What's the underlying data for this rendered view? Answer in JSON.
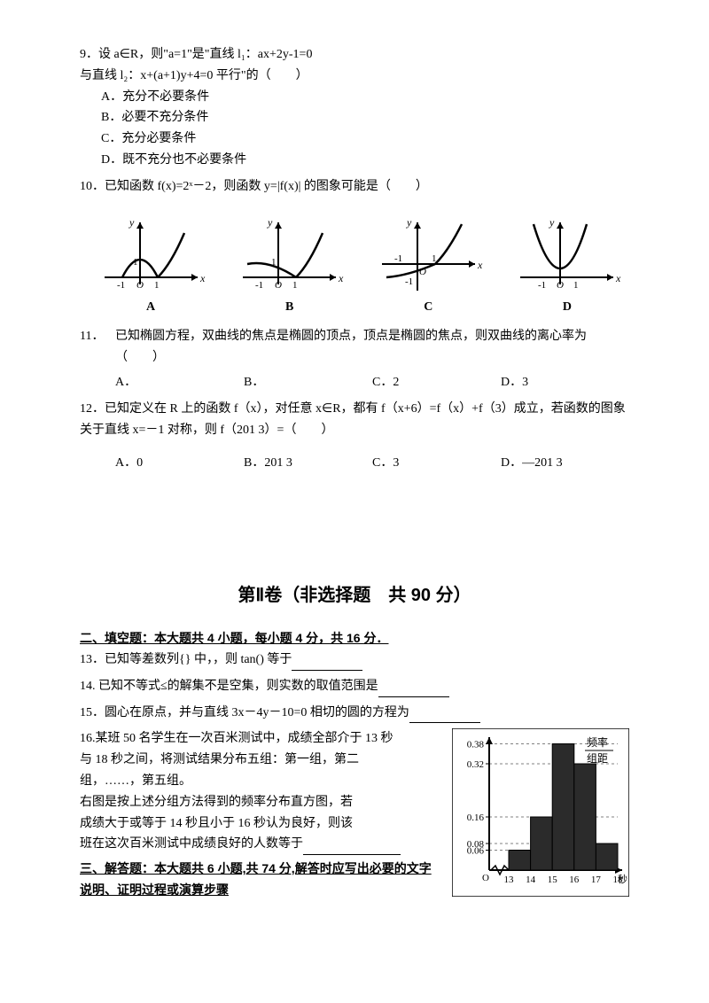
{
  "q9": {
    "stem_line1": "9．设 a∈R，则\"a=1\"是\"直线 l₁：ax+2y-1=0",
    "stem_line2": "与直线 l₂：x+(a+1)y+4=0 平行\"的（　　）",
    "optA": "A．充分不必要条件",
    "optB": "B．必要不充分条件",
    "optC": "C．充分必要条件",
    "optD": "D．既不充分也不必要条件"
  },
  "q10": {
    "stem": "10．已知函数 f(x)=2ˣ－2，则函数 y=|f(x)| 的图象可能是（　　）",
    "labels": {
      "A": "A",
      "B": "B",
      "C": "C",
      "D": "D"
    },
    "axis": {
      "x": "x",
      "y": "y",
      "neg1": "-1",
      "zero": "O",
      "one": "1"
    }
  },
  "q11": {
    "stem": "11．已知椭圆方程，双曲线的焦点是椭圆的顶点，顶点是椭圆的焦点，则双曲线的离心率为（　　）",
    "A": "A．",
    "B": "B．",
    "C": "C．2",
    "D": "D．3"
  },
  "q12": {
    "stem": "12．已知定义在 R 上的函数 f（x），对任意 x∈R，都有 f（x+6）=f（x）+f（3）成立，若函数的图象关于直线 x=－1 对称，则 f（201 3）=（　　）",
    "A": "A．0",
    "B": "B．201 3",
    "C": "C．3",
    "D": "D．—201 3"
  },
  "sectionII": "第Ⅱ卷（非选择题　共 90 分）",
  "fill_heading": "二、填空题：本大题共 4 小题，每小题 4 分，共 16 分．",
  "q13": "13．已知等差数列{} 中，，则 tan() 等于",
  "q14": "14. 已知不等式≤的解集不是空集，则实数的取值范围是",
  "q15": "15．圆心在原点，并与直线 3x－4y－10=0 相切的圆的方程为",
  "q16": {
    "l1": "16.某班 50 名学生在一次百米测试中，成绩全部介于 13 秒",
    "l2": "与 18 秒之间，将测试结果分布五组：第一组，第二",
    "l3": "组，……，第五组。",
    "l4": "右图是按上述分组方法得到的频率分布直方图，若",
    "l5": "成绩大于或等于 14 秒且小于 16 秒认为良好，则该",
    "l6": "班在这次百米测试中成绩良好的人数等于"
  },
  "ans_heading": "三、解答题：本大题共 6 小题,共 74 分,解答时应写出必要的文字说明、证明过程或演算步骤",
  "hist": {
    "ylabel1": "频率",
    "ylabel2": "组距",
    "xlabel": "秒",
    "yticks": [
      "0.38",
      "0.32",
      "0.16",
      "0.08",
      "0.06"
    ],
    "xticks": [
      "13",
      "14",
      "15",
      "16",
      "17",
      "18"
    ],
    "bar_color": "#2b2b2b",
    "bg_color": "#ffffff",
    "heights": [
      0.06,
      0.16,
      0.38,
      0.32,
      0.08
    ]
  }
}
